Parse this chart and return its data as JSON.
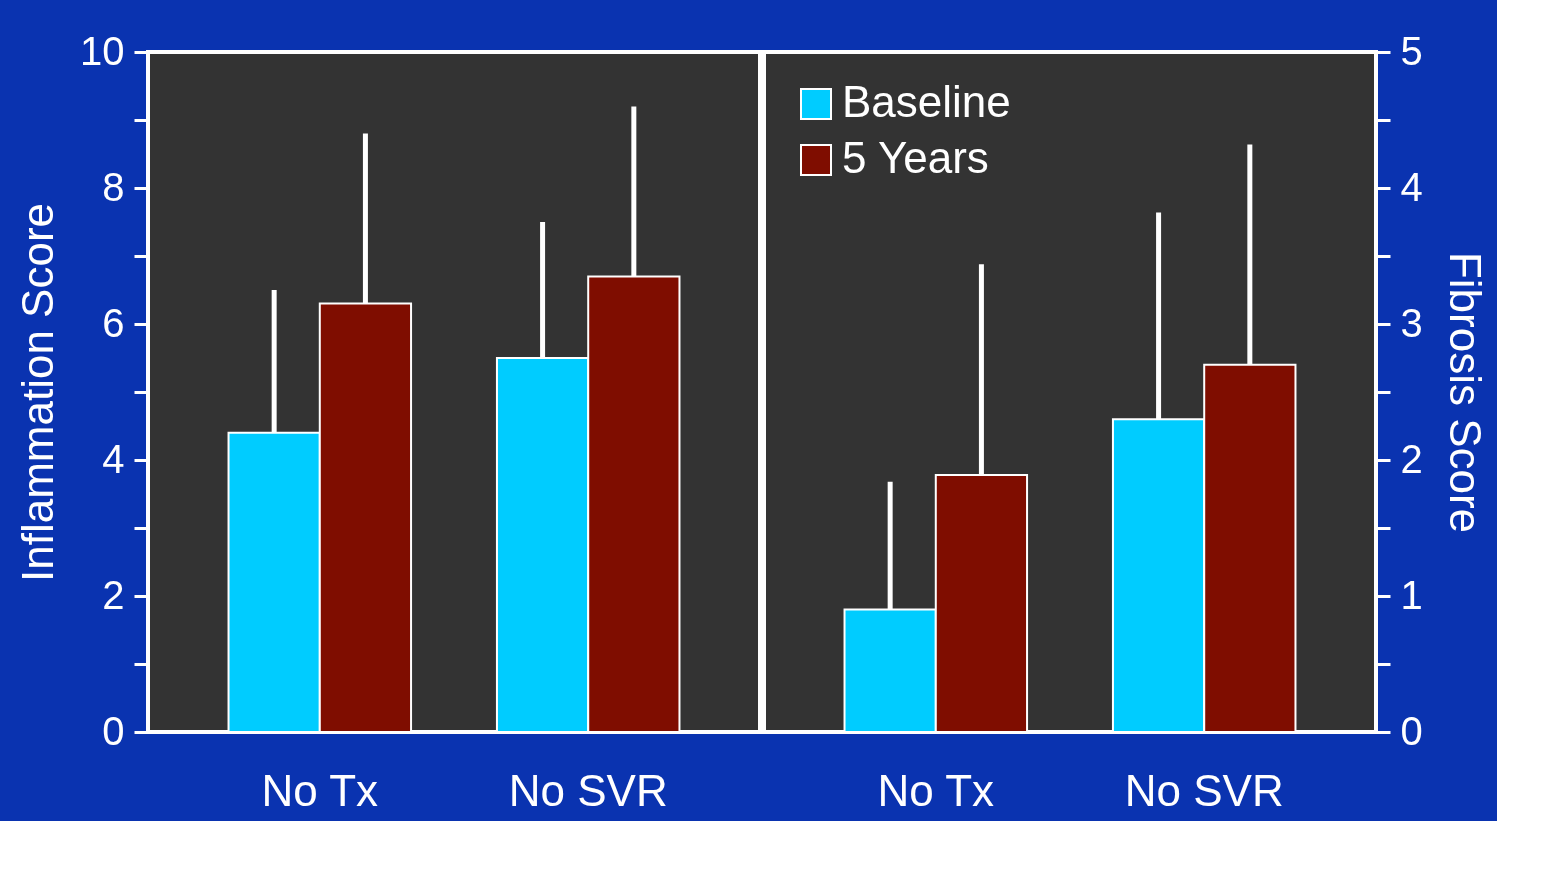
{
  "chart_data": [
    {
      "type": "bar",
      "categories": [
        "No Tx",
        "No SVR"
      ],
      "ylabel": "Inflammation Score",
      "ylim": [
        0,
        10
      ],
      "yticks": [
        0,
        {
          "value": 1,
          "label": null
        },
        2,
        {
          "value": 3,
          "label": null
        },
        4,
        {
          "value": 5,
          "label": null
        },
        6,
        {
          "value": 7,
          "label": null
        },
        8,
        {
          "value": 9,
          "label": null
        },
        10
      ],
      "legend": false,
      "series": [
        {
          "color": "#00ccff",
          "values": [
            4.4,
            5.5
          ],
          "errors": [
            [
              4.4,
              6.5
            ],
            [
              5.5,
              7.5
            ]
          ]
        },
        {
          "color": "#7f0d00",
          "values": [
            6.3,
            6.7
          ],
          "errors": [
            [
              6.3,
              8.8
            ],
            [
              6.7,
              9.2
            ]
          ]
        }
      ]
    },
    {
      "type": "bar",
      "categories": [
        "No Tx",
        "No SVR"
      ],
      "y2label": "Fibrosis Score",
      "y2lim": [
        0,
        5
      ],
      "y2ticks": [
        0,
        {
          "value": 0.5,
          "label": null
        },
        1,
        {
          "value": 1.5,
          "label": null
        },
        2,
        {
          "value": 2.5,
          "label": null
        },
        3,
        {
          "value": 3.5,
          "label": null
        },
        4,
        {
          "value": 4.5,
          "label": null
        },
        5
      ],
      "legend": "top left",
      "series": [
        {
          "name": "Baseline",
          "color": "#00ccff",
          "axis": "y2",
          "values": [
            0.9,
            2.3
          ],
          "errors": [
            [
              0.9,
              1.84
            ],
            [
              2.3,
              3.82
            ]
          ]
        },
        {
          "name": "5 Years",
          "color": "#7f0d00",
          "axis": "y2",
          "values": [
            1.89,
            2.7
          ],
          "errors": [
            [
              1.89,
              3.44
            ],
            [
              2.7,
              4.32
            ]
          ]
        }
      ]
    }
  ]
}
